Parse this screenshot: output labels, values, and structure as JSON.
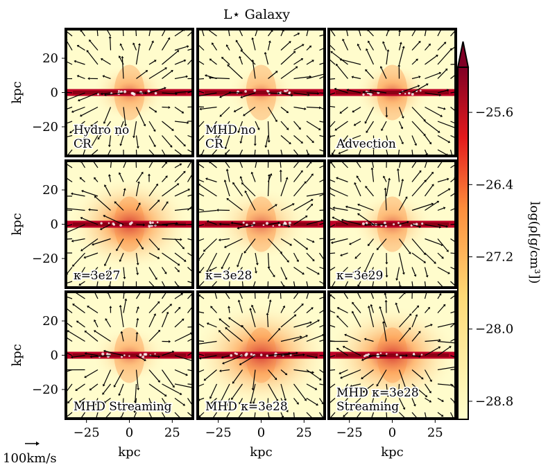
{
  "chart_data": {
    "type": "heatmap",
    "title": "L⋆ Galaxy",
    "xlabel": "kpc",
    "ylabel": "kpc",
    "xlim": [
      -37,
      37
    ],
    "ylim": [
      -37,
      37
    ],
    "xticks": [
      -25,
      0,
      25
    ],
    "xtick_labels": [
      "−25",
      "0",
      "25"
    ],
    "yticks": [
      20,
      0,
      -20
    ],
    "ytick_labels": [
      "20",
      "0",
      "−20"
    ],
    "colorbar": {
      "label": "log(ρ[g/cm³])",
      "range": [
        -29.0,
        -25.1
      ],
      "ticks": [
        -25.6,
        -26.4,
        -27.2,
        -28.0,
        -28.8
      ],
      "tick_labels": [
        "−25.6",
        "−26.4",
        "−27.2",
        "−28.0",
        "−28.8"
      ],
      "colormap": "YlOrRd",
      "extend": "max"
    },
    "velocity_scale_label": "100km/s",
    "panels": [
      {
        "label_lines": [
          "Hydro no",
          "CR"
        ],
        "halo_strength": 0.35,
        "halo_width": 0.55,
        "vector_pattern": "outflow"
      },
      {
        "label_lines": [
          "MHD no",
          "CR"
        ],
        "halo_strength": 0.25,
        "halo_width": 0.5,
        "vector_pattern": "outflow"
      },
      {
        "label_lines": [
          "Advection"
        ],
        "halo_strength": 0.4,
        "halo_width": 0.55,
        "vector_pattern": "outflow"
      },
      {
        "label_lines": [
          "κ=3e27"
        ],
        "halo_strength": 0.6,
        "halo_width": 0.9,
        "vector_pattern": "outflow"
      },
      {
        "label_lines": [
          "κ=3e28"
        ],
        "halo_strength": 0.35,
        "halo_width": 0.7,
        "vector_pattern": "outflow"
      },
      {
        "label_lines": [
          "κ=3e29"
        ],
        "halo_strength": 0.35,
        "halo_width": 0.6,
        "vector_pattern": "outflow"
      },
      {
        "label_lines": [
          "MHD Streaming"
        ],
        "halo_strength": 0.3,
        "halo_width": 0.55,
        "vector_pattern": "outflow"
      },
      {
        "label_lines": [
          "MHD κ=3e28"
        ],
        "halo_strength": 0.6,
        "halo_width": 1.0,
        "vector_pattern": "outflow"
      },
      {
        "label_lines": [
          "MHD κ=3e28",
          "Streaming"
        ],
        "halo_strength": 0.6,
        "halo_width": 0.95,
        "vector_pattern": "outflow"
      }
    ]
  },
  "colors": {
    "background": "#fffccc",
    "low": "#ffffcc",
    "mid": "#fd8d3c",
    "high": "#bd0026",
    "extend": "#800026",
    "frame": "#000000"
  }
}
